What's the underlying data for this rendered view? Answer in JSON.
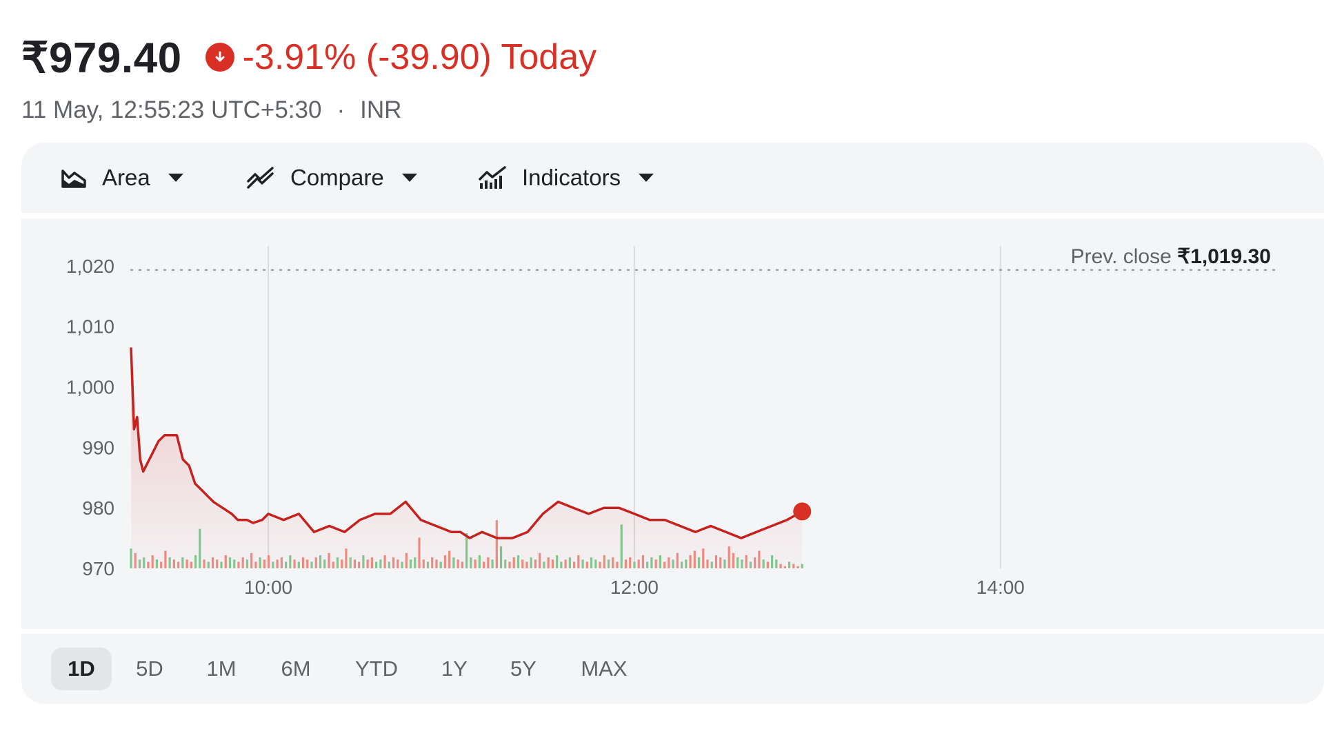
{
  "quote": {
    "price": "₹979.40",
    "change": "-3.91% (-39.90) Today",
    "timestamp": "11 May, 12:55:23 UTC+5:30",
    "separator": "·",
    "currency": "INR",
    "change_icon": "arrow-down-circle-icon",
    "down_color": "#d93025"
  },
  "toolbar": {
    "chart_type": {
      "label": "Area",
      "icon": "area-chart-icon"
    },
    "compare": {
      "label": "Compare",
      "icon": "compare-lines-icon"
    },
    "indicators": {
      "label": "Indicators",
      "icon": "indicators-icon"
    },
    "caret_icon": "caret-down-icon"
  },
  "ranges": {
    "items": [
      "1D",
      "5D",
      "1M",
      "6M",
      "YTD",
      "1Y",
      "5Y",
      "MAX"
    ],
    "selected": "1D"
  },
  "chart_data": {
    "type": "area",
    "series": [
      {
        "x": [
          "09:15",
          "09:16",
          "09:17",
          "09:18",
          "09:19",
          "09:20",
          "09:22",
          "09:24",
          "09:26",
          "09:28",
          "09:30",
          "09:32",
          "09:34",
          "09:36",
          "09:38",
          "09:40",
          "09:42",
          "09:45",
          "09:48",
          "09:50",
          "09:53",
          "09:55",
          "09:58",
          "10:00",
          "10:05",
          "10:10",
          "10:15",
          "10:20",
          "10:25",
          "10:30",
          "10:35",
          "10:40",
          "10:45",
          "10:50",
          "10:55",
          "11:00",
          "11:03",
          "11:06",
          "11:10",
          "11:15",
          "11:20",
          "11:25",
          "11:30",
          "11:35",
          "11:40",
          "11:45",
          "11:50",
          "11:55",
          "12:00",
          "12:05",
          "12:10",
          "12:15",
          "12:20",
          "12:25",
          "12:30",
          "12:35",
          "12:40",
          "12:45",
          "12:50",
          "12:55"
        ],
        "y": [
          1006.5,
          993,
          995,
          988,
          986,
          987,
          989,
          991,
          992,
          992,
          992,
          988,
          987,
          984,
          983,
          982,
          981,
          980,
          979,
          978,
          978,
          977.5,
          978,
          979,
          978,
          979,
          976,
          977,
          976,
          978,
          979,
          979,
          981,
          978,
          977,
          976,
          976,
          975,
          976,
          975,
          975,
          976,
          979,
          981,
          980,
          979,
          980,
          980,
          979,
          978,
          978,
          977,
          976,
          977,
          976,
          975,
          976,
          977,
          978,
          979.4
        ]
      }
    ],
    "prev_close_value": 1019.3,
    "prev_close_label": "Prev. close",
    "prev_close_text": "₹1,019.30",
    "volume": [
      9,
      7,
      4,
      5,
      3,
      6,
      4,
      3,
      8,
      5,
      4,
      3,
      5,
      4,
      3,
      6,
      18,
      4,
      3,
      5,
      4,
      3,
      6,
      5,
      4,
      3,
      5,
      4,
      7,
      3,
      5,
      4,
      6,
      3,
      4,
      5,
      3,
      6,
      4,
      3,
      5,
      4,
      3,
      5,
      6,
      4,
      7,
      3,
      5,
      4,
      9,
      5,
      4,
      3,
      6,
      4,
      5,
      3,
      4,
      6,
      3,
      5,
      4,
      3,
      7,
      4,
      5,
      14,
      4,
      3,
      5,
      4,
      3,
      6,
      8,
      5,
      4,
      3,
      16,
      5,
      4,
      6,
      3,
      5,
      4,
      22,
      10,
      4,
      3,
      5,
      6,
      4,
      3,
      5,
      4,
      7,
      3,
      5,
      4,
      6,
      3,
      4,
      5,
      3,
      6,
      4,
      3,
      5,
      4,
      3,
      6,
      4,
      5,
      3,
      20,
      4,
      5,
      3,
      4,
      6,
      3,
      5,
      4,
      6,
      3,
      5,
      4,
      7,
      3,
      4,
      6,
      8,
      5,
      9,
      4,
      3,
      6,
      5,
      4,
      10,
      7,
      5,
      4,
      6,
      3,
      5,
      8,
      4,
      3,
      6,
      4,
      2,
      1,
      3,
      2,
      1,
      2
    ],
    "yticks": [
      "1,020",
      "1,010",
      "1,000",
      "990",
      "980",
      "970"
    ],
    "ytick_values": [
      1020,
      1010,
      1000,
      990,
      980,
      970
    ],
    "xticks": [
      "10:00",
      "12:00",
      "14:00"
    ],
    "ylim": [
      970,
      1021
    ],
    "xlim": [
      "09:15",
      "15:30"
    ],
    "grid": "vertical",
    "line_color": "#c5221f",
    "volume_up_color": "#81c995",
    "volume_down_color": "#f28b82"
  }
}
